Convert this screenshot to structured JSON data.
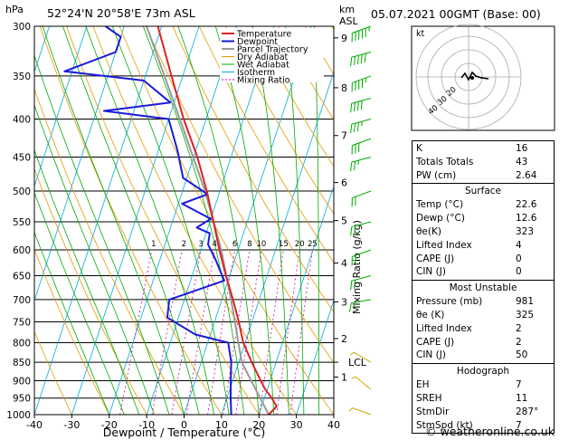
{
  "header": {
    "station": "52°24'N  20°58'E  73m  ASL",
    "datetime": "05.07.2021  00GMT  (Base: 00)",
    "hpa_label": "hPa",
    "km_label": "km",
    "asl_label": "ASL"
  },
  "legend": [
    "Temperature",
    "Dewpoint",
    "Parcel Trajectory",
    "Dry Adiabat",
    "Wet Adiabat",
    "Isotherm",
    "Mixing Ratio"
  ],
  "colors": {
    "temperature": "#dd2222",
    "dewpoint": "#1a1adc",
    "parcel": "#999999",
    "dry_adiabat": "#e69a00",
    "wet_adiabat": "#00aa00",
    "isotherm": "#00aadd",
    "mixing_ratio": "#cc00aa",
    "wind": "#aacc00"
  },
  "chart_data": {
    "type": "skew-t",
    "xlabel": "Dewpoint / Temperature (°C)",
    "x_ticks": [
      -40,
      -30,
      -20,
      -10,
      0,
      10,
      20,
      30,
      40
    ],
    "pressure_levels": [
      300,
      350,
      400,
      450,
      500,
      550,
      600,
      650,
      700,
      750,
      800,
      850,
      900,
      950,
      1000
    ],
    "xlim": [
      -40,
      40
    ],
    "ylim": [
      1000,
      300
    ],
    "km_ticks": [
      {
        "p": 311,
        "label": "9"
      },
      {
        "p": 363,
        "label": "8"
      },
      {
        "p": 421,
        "label": "7"
      },
      {
        "p": 487,
        "label": "6"
      },
      {
        "p": 548,
        "label": "5"
      },
      {
        "p": 625,
        "label": "4"
      },
      {
        "p": 705,
        "label": "3"
      },
      {
        "p": 790,
        "label": "2"
      },
      {
        "p": 850,
        "label": "LCL"
      },
      {
        "p": 890,
        "label": "1"
      }
    ],
    "mixing_ratio_ylabel": "Mixing Ratio (g/kg)",
    "mixing_ratio_labels": [
      "1",
      "2",
      "3",
      "4",
      "6",
      "8",
      "10",
      "15",
      "20",
      "25"
    ],
    "mixing_ratio_values": [
      1,
      2,
      3,
      4,
      6,
      8,
      10,
      15,
      20,
      25
    ],
    "temperature": [
      {
        "p": 1000,
        "t": 22.6
      },
      {
        "p": 975,
        "t": 24
      },
      {
        "p": 950,
        "t": 22
      },
      {
        "p": 925,
        "t": 19.5
      },
      {
        "p": 900,
        "t": 17.5
      },
      {
        "p": 850,
        "t": 13.5
      },
      {
        "p": 800,
        "t": 9.5
      },
      {
        "p": 750,
        "t": 6.5
      },
      {
        "p": 700,
        "t": 3
      },
      {
        "p": 650,
        "t": -1
      },
      {
        "p": 600,
        "t": -5
      },
      {
        "p": 550,
        "t": -9
      },
      {
        "p": 500,
        "t": -13.5
      },
      {
        "p": 450,
        "t": -19
      },
      {
        "p": 400,
        "t": -26
      },
      {
        "p": 350,
        "t": -33
      },
      {
        "p": 300,
        "t": -41
      }
    ],
    "dewpoint": [
      {
        "p": 1000,
        "t": 12.6
      },
      {
        "p": 950,
        "t": 11
      },
      {
        "p": 900,
        "t": 9.5
      },
      {
        "p": 850,
        "t": 8
      },
      {
        "p": 800,
        "t": 5.5
      },
      {
        "p": 780,
        "t": -4
      },
      {
        "p": 740,
        "t": -13
      },
      {
        "p": 700,
        "t": -14
      },
      {
        "p": 660,
        "t": -1
      },
      {
        "p": 620,
        "t": -5
      },
      {
        "p": 590,
        "t": -8.5
      },
      {
        "p": 570,
        "t": -9
      },
      {
        "p": 560,
        "t": -13
      },
      {
        "p": 545,
        "t": -10
      },
      {
        "p": 520,
        "t": -19
      },
      {
        "p": 505,
        "t": -13
      },
      {
        "p": 480,
        "t": -21
      },
      {
        "p": 440,
        "t": -25
      },
      {
        "p": 400,
        "t": -30
      },
      {
        "p": 390,
        "t": -48
      },
      {
        "p": 380,
        "t": -31
      },
      {
        "p": 355,
        "t": -40
      },
      {
        "p": 345,
        "t": -62
      },
      {
        "p": 325,
        "t": -50
      },
      {
        "p": 310,
        "t": -50
      },
      {
        "p": 300,
        "t": -55
      }
    ],
    "parcel": [
      {
        "p": 1000,
        "t": 22.6
      },
      {
        "p": 850,
        "t": 10.8
      },
      {
        "p": 700,
        "t": 2.5
      },
      {
        "p": 600,
        "t": -4.5
      },
      {
        "p": 500,
        "t": -14
      },
      {
        "p": 400,
        "t": -27
      },
      {
        "p": 300,
        "t": -44
      }
    ],
    "wind_barbs": [
      {
        "p": 300,
        "dir": 250,
        "kt": 55
      },
      {
        "p": 325,
        "dir": 255,
        "kt": 50
      },
      {
        "p": 350,
        "dir": 250,
        "kt": 45
      },
      {
        "p": 375,
        "dir": 255,
        "kt": 40
      },
      {
        "p": 400,
        "dir": 255,
        "kt": 35
      },
      {
        "p": 425,
        "dir": 250,
        "kt": 30
      },
      {
        "p": 450,
        "dir": 255,
        "kt": 25
      },
      {
        "p": 500,
        "dir": 250,
        "kt": 20
      },
      {
        "p": 550,
        "dir": 255,
        "kt": 20
      },
      {
        "p": 600,
        "dir": 250,
        "kt": 20
      },
      {
        "p": 650,
        "dir": 255,
        "kt": 20
      },
      {
        "p": 700,
        "dir": 260,
        "kt": 15
      },
      {
        "p": 850,
        "dir": 300,
        "kt": 5
      },
      {
        "p": 925,
        "dir": 310,
        "kt": 5
      },
      {
        "p": 1000,
        "dir": 290,
        "kt": 5
      }
    ]
  },
  "hodograph": {
    "unit_label": "kt",
    "ring_labels": [
      "20",
      "30",
      "40"
    ]
  },
  "indices": {
    "top": [
      {
        "label": "K",
        "value": "16"
      },
      {
        "label": "Totals Totals",
        "value": "43"
      },
      {
        "label": "PW (cm)",
        "value": "2.64"
      }
    ],
    "surface": {
      "title": "Surface",
      "rows": [
        {
          "label": "Temp (°C)",
          "value": "22.6"
        },
        {
          "label": "Dewp (°C)",
          "value": "12.6"
        },
        {
          "label": "θe(K)",
          "value": "323"
        },
        {
          "label": "Lifted Index",
          "value": "4"
        },
        {
          "label": "CAPE (J)",
          "value": "0"
        },
        {
          "label": "CIN (J)",
          "value": "0"
        }
      ]
    },
    "unstable": {
      "title": "Most Unstable",
      "rows": [
        {
          "label": "Pressure (mb)",
          "value": "981"
        },
        {
          "label": "θe (K)",
          "value": "325"
        },
        {
          "label": "Lifted Index",
          "value": "2"
        },
        {
          "label": "CAPE (J)",
          "value": "2"
        },
        {
          "label": "CIN (J)",
          "value": "50"
        }
      ]
    },
    "hodo": {
      "title": "Hodograph",
      "rows": [
        {
          "label": "EH",
          "value": "7"
        },
        {
          "label": "SREH",
          "value": "11"
        },
        {
          "label": "StmDir",
          "value": "287°"
        },
        {
          "label": "StmSpd (kt)",
          "value": "7"
        }
      ]
    }
  },
  "footer": {
    "credit": "© weatheronline.co.uk"
  }
}
